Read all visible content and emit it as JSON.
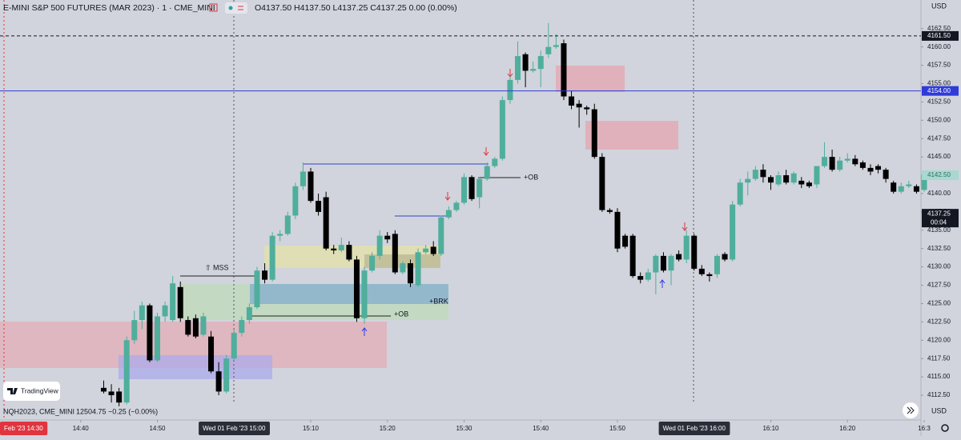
{
  "header": {
    "title": "E-MINI S&P 500 FUTURES (MAR 2023) · 1 · CME_MINI",
    "ohlc": "O4137.50 H4137.50 L4137.25 C4137.25 0.00 (0.00%)",
    "currency": "USD"
  },
  "compare": {
    "symbol": "NQH2023, CME_MINI",
    "quote": "12504.75 −0.25 (−0.00%)",
    "currency": "USD"
  },
  "logo": "TradingView",
  "annotations": {
    "mss": "⇧ MSS",
    "ob_upper": "+OB",
    "brk": "+BRK",
    "ob_lower": "+OB"
  },
  "chart_data": {
    "type": "candlestick",
    "x": [
      "14:43",
      "14:44",
      "14:45",
      "14:46",
      "14:47",
      "14:48",
      "14:49",
      "14:50",
      "14:51",
      "14:52",
      "14:53",
      "14:54",
      "14:55",
      "14:56",
      "14:57",
      "14:58",
      "14:59",
      "15:00",
      "15:01",
      "15:02",
      "15:03",
      "15:04",
      "15:05",
      "15:06",
      "15:07",
      "15:08",
      "15:09",
      "15:10",
      "15:11",
      "15:12",
      "15:13",
      "15:14",
      "15:15",
      "15:16",
      "15:17",
      "15:18",
      "15:19",
      "15:20",
      "15:21",
      "15:22",
      "15:23",
      "15:24",
      "15:25",
      "15:26",
      "15:27",
      "15:28",
      "15:29",
      "15:30",
      "15:31",
      "15:32",
      "15:33",
      "15:34",
      "15:35",
      "15:36",
      "15:37",
      "15:38",
      "15:39",
      "15:40",
      "15:41",
      "15:42",
      "15:43",
      "15:44",
      "15:45",
      "15:46",
      "15:47",
      "15:48",
      "15:49",
      "15:50",
      "15:51",
      "15:52",
      "15:53",
      "15:54",
      "15:55",
      "15:56",
      "15:57",
      "15:58",
      "15:59",
      "16:00",
      "16:01",
      "16:02",
      "16:03",
      "16:04",
      "16:05",
      "16:06",
      "16:07",
      "16:08",
      "16:09",
      "16:10",
      "16:11",
      "16:12",
      "16:13",
      "16:14",
      "16:15",
      "16:16",
      "16:17",
      "16:18",
      "16:19",
      "16:20",
      "16:21",
      "16:22",
      "16:23",
      "16:24",
      "16:25",
      "16:26",
      "16:27",
      "16:28",
      "16:29",
      "16:30"
    ],
    "open": [
      4113.5,
      4113,
      4113,
      4111.5,
      4120,
      4122.75,
      4124.75,
      4117.25,
      4123.25,
      4122.75,
      4127.25,
      4122.75,
      4123,
      4120.75,
      4120.5,
      4115.75,
      4113,
      4117.5,
      4121,
      4122.75,
      4124.5,
      4129.5,
      4128.25,
      4134.25,
      4134.5,
      4137,
      4141,
      4143,
      4139,
      4139.5,
      4132.5,
      4132.25,
      4133,
      4131,
      4123,
      4129.5,
      4131.5,
      4134.25,
      4134.5,
      4129.25,
      4130.5,
      4127.5,
      4132,
      4132.75,
      4131.75,
      4136.75,
      4137.75,
      4138.75,
      4142.25,
      4139.5,
      4142,
      4143.75,
      4144.75,
      4152.75,
      4155.5,
      4159,
      4156.75,
      4157,
      4159,
      4160,
      4160.5,
      4153.25,
      4152.25,
      4151.75,
      4151.5,
      4145,
      4137.75,
      4137.5,
      4134.25,
      4134.25,
      4128.75,
      4128.25,
      4129.25,
      4131.5,
      4129.5,
      4131.75,
      4131,
      4134.25,
      4129.75,
      4129,
      4129,
      4131.75,
      4131,
      4138.5,
      4141.5,
      4142,
      4143.25,
      4142.25,
      4141.25,
      4142.5,
      4141.5,
      4141.75,
      4141.5,
      4141.25,
      4143.75,
      4145,
      4143.25,
      4144.5,
      4144.75,
      4144.25,
      4143.5,
      4143.75,
      4143.25,
      4141.5,
      4140.25,
      4141,
      4141,
      4140.5
    ],
    "high": [
      4114.5,
      4114,
      4113.5,
      4120.5,
      4124,
      4125.25,
      4125,
      4123.75,
      4125.25,
      4128.75,
      4128,
      4123.25,
      4123.5,
      4123.75,
      4121.25,
      4117,
      4118,
      4121.5,
      4123.25,
      4125,
      4130,
      4130.5,
      4134.75,
      4135,
      4137.5,
      4141.5,
      4144.25,
      4143.5,
      4140,
      4140.25,
      4133,
      4134,
      4133.5,
      4131.5,
      4130,
      4132,
      4135,
      4134.75,
      4135,
      4130.75,
      4131,
      4132.5,
      4133,
      4133.5,
      4137,
      4138.25,
      4139,
      4142.75,
      4142.5,
      4142.25,
      4144.25,
      4145,
      4153.25,
      4156,
      4160.75,
      4159.25,
      4158,
      4159.5,
      4163.25,
      4161.75,
      4161,
      4154,
      4152.75,
      4152,
      4152.25,
      4145.5,
      4138,
      4138,
      4134.5,
      4134.5,
      4129.25,
      4129.75,
      4131.75,
      4132,
      4131.75,
      4132.25,
      4135,
      4134.5,
      4130.25,
      4129.25,
      4131.75,
      4132,
      4139,
      4142,
      4143,
      4143.75,
      4144,
      4142.5,
      4143,
      4143.25,
      4143,
      4142.25,
      4141.75,
      4143.75,
      4147,
      4146,
      4145,
      4145.5,
      4145.25,
      4144.5,
      4144,
      4144,
      4143.5,
      4141.75,
      4141.5,
      4141.75,
      4141.25,
      4142.75
    ],
    "low": [
      4112.75,
      4111.5,
      4111,
      4111.25,
      4119.5,
      4121.5,
      4117,
      4117,
      4122.5,
      4122.5,
      4122.5,
      4120.5,
      4120.25,
      4120.5,
      4115.5,
      4112.5,
      4112.75,
      4117.25,
      4120.5,
      4122.25,
      4124.25,
      4127.75,
      4128,
      4133.5,
      4134.25,
      4136.5,
      4140.5,
      4138.75,
      4137,
      4132.25,
      4131.75,
      4132,
      4130.75,
      4122.5,
      4122.25,
      4129.25,
      4131,
      4133.25,
      4129,
      4129,
      4127.25,
      4127.25,
      4131.75,
      4131.5,
      4131.5,
      4136.5,
      4137.5,
      4138.5,
      4139,
      4138,
      4141.75,
      4143.5,
      4144.5,
      4152.25,
      4155,
      4154.5,
      4156.5,
      4154.5,
      4158.5,
      4159.75,
      4152.75,
      4151.5,
      4149,
      4150.75,
      4144.75,
      4137.5,
      4137.25,
      4132,
      4132.5,
      4128.5,
      4127.75,
      4128,
      4126.25,
      4129.25,
      4127.5,
      4130.75,
      4130.5,
      4129.5,
      4128.75,
      4128,
      4128.5,
      4130.75,
      4130.75,
      4138.25,
      4139.75,
      4141.75,
      4141.5,
      4140.5,
      4141,
      4141.25,
      4141.25,
      4140.75,
      4140.75,
      4140.75,
      4143.5,
      4143,
      4143,
      4144.25,
      4143.75,
      4143.25,
      4142.5,
      4142.75,
      4141.5,
      4140,
      4140,
      4140.75,
      4140,
      4140.25
    ],
    "close": [
      4113,
      4112.5,
      4111.5,
      4120,
      4122.75,
      4124.75,
      4117.25,
      4123.25,
      4124.75,
      4127.75,
      4123,
      4120.75,
      4120.5,
      4123.25,
      4115.75,
      4113,
      4117.5,
      4121,
      4122.75,
      4124.5,
      4129.5,
      4128.25,
      4134.25,
      4134.5,
      4137,
      4141,
      4143,
      4139,
      4137.5,
      4132.5,
      4132.25,
      4133,
      4131,
      4123,
      4129.5,
      4131.5,
      4134.25,
      4133.75,
      4129.25,
      4130.5,
      4127.75,
      4132,
      4132.5,
      4131.75,
      4136.75,
      4137.75,
      4138.75,
      4142.25,
      4139.25,
      4142,
      4143.75,
      4144.75,
      4152.75,
      4155.5,
      4158.75,
      4156.75,
      4157,
      4158.75,
      4160,
      4160.25,
      4153.25,
      4152,
      4151.75,
      4151.5,
      4145,
      4137.75,
      4137.5,
      4132.5,
      4132.75,
      4128.75,
      4128.25,
      4129.25,
      4131.5,
      4129.5,
      4131.5,
      4131,
      4134.25,
      4129.75,
      4129,
      4128.75,
      4131.5,
      4131,
      4138.5,
      4141.5,
      4142,
      4143.25,
      4142.25,
      4141.5,
      4142.5,
      4141.5,
      4142.75,
      4141.25,
      4141,
      4143.75,
      4145,
      4143.25,
      4144.5,
      4144.75,
      4144,
      4143.5,
      4143,
      4143.25,
      4142,
      4140.25,
      4141,
      4141.25,
      4140.25,
      4142.5
    ],
    "up_color": "#4fae9c",
    "down_color": "#000000",
    "ylim": [
      4111.3,
      4166.4
    ],
    "yticks": [
      {
        "value": 4112.5,
        "label": "4112.50"
      },
      {
        "value": 4115,
        "label": "4115.00"
      },
      {
        "value": 4117.5,
        "label": "4117.50"
      },
      {
        "value": 4120,
        "label": "4120.00"
      },
      {
        "value": 4122.5,
        "label": "4122.50"
      },
      {
        "value": 4125,
        "label": "4125.00"
      },
      {
        "value": 4127.5,
        "label": "4127.50"
      },
      {
        "value": 4130,
        "label": "4130.00"
      },
      {
        "value": 4132.5,
        "label": "4132.50"
      },
      {
        "value": 4135,
        "label": "4135.00"
      },
      {
        "value": 4137.5,
        "label": "4137.50"
      },
      {
        "value": 4140,
        "label": "4140.00"
      },
      {
        "value": 4142.5,
        "label": "4142.50"
      },
      {
        "value": 4145,
        "label": "4145.00"
      },
      {
        "value": 4147.5,
        "label": "4147.50"
      },
      {
        "value": 4150,
        "label": "4150.00"
      },
      {
        "value": 4152.5,
        "label": "4152.50"
      },
      {
        "value": 4155,
        "label": "4155.00"
      },
      {
        "value": 4157.5,
        "label": "4157.50"
      },
      {
        "value": 4160,
        "label": "4160.00"
      },
      {
        "value": 4162.5,
        "label": "4162.50"
      }
    ],
    "xlim": [
      "14:30",
      "16:30"
    ],
    "xticks": [
      "14:40",
      "14:50",
      "15:10",
      "15:20",
      "15:30",
      "15:40",
      "15:50",
      "16:10",
      "16:20",
      {
        "value": "16:30",
        "label": "16:3"
      }
    ],
    "grid": false,
    "date_labels": [
      {
        "value": "14:30",
        "label": "Feb '23  14:30",
        "color": "#e0343e"
      },
      {
        "value": "15:00",
        "label": "Wed 01 Feb '23  15:00",
        "color": "#2a2e39"
      },
      {
        "value": "16:00",
        "label": "Wed 01 Feb '23  16:00",
        "color": "#2a2e39"
      }
    ],
    "price_labels": [
      {
        "value": 4161.5,
        "label": "4161.50",
        "color": "#131722",
        "line": "dashed"
      },
      {
        "value": 4154,
        "label": "4154.00",
        "color": "#2f3bd9",
        "line": "solid"
      },
      {
        "value": 4142.5,
        "label": "4142.50",
        "color": "#a8d8cf",
        "line": null
      },
      {
        "value": 4137.25,
        "label": "4137.25",
        "color": "#131722",
        "line": null
      }
    ],
    "countdown": "00:04"
  }
}
